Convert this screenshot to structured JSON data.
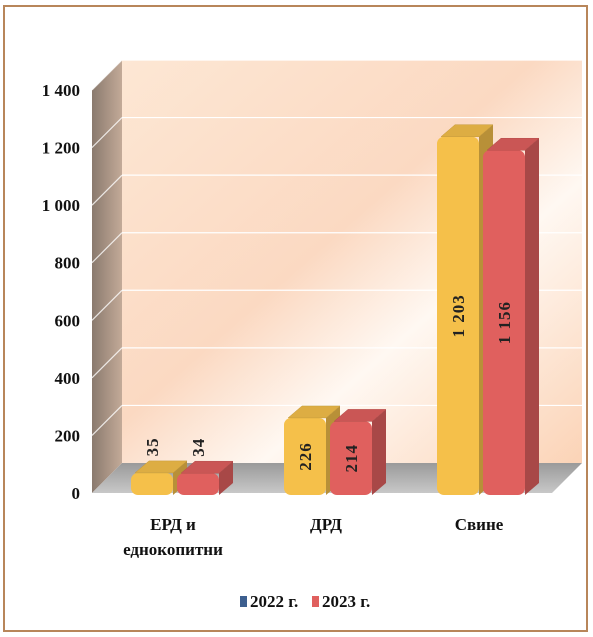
{
  "chart_data": {
    "type": "bar",
    "categories": [
      [
        "ЕРД и",
        "еднокопитни"
      ],
      [
        "ДРД"
      ],
      [
        "Свине"
      ]
    ],
    "series": [
      {
        "name": "2022 г.",
        "values": [
          35,
          226,
          1203
        ],
        "labels": [
          "35",
          "226",
          "1 203"
        ],
        "color": "#f5c04a",
        "legend_color": "#3d5f8f"
      },
      {
        "name": "2023 г.",
        "values": [
          34,
          214,
          1156
        ],
        "labels": [
          "34",
          "214",
          "1 156"
        ],
        "color": "#e0605e",
        "legend_color": "#e0605e"
      }
    ],
    "ylim": [
      0,
      1400
    ],
    "yticks": [
      0,
      200,
      400,
      600,
      800,
      1000,
      1200,
      1400
    ],
    "ytick_labels": [
      "0",
      "200",
      "400",
      "600",
      "800",
      "1 000",
      "1 200",
      "1 400"
    ],
    "grid": true,
    "legend_position": "bottom"
  }
}
